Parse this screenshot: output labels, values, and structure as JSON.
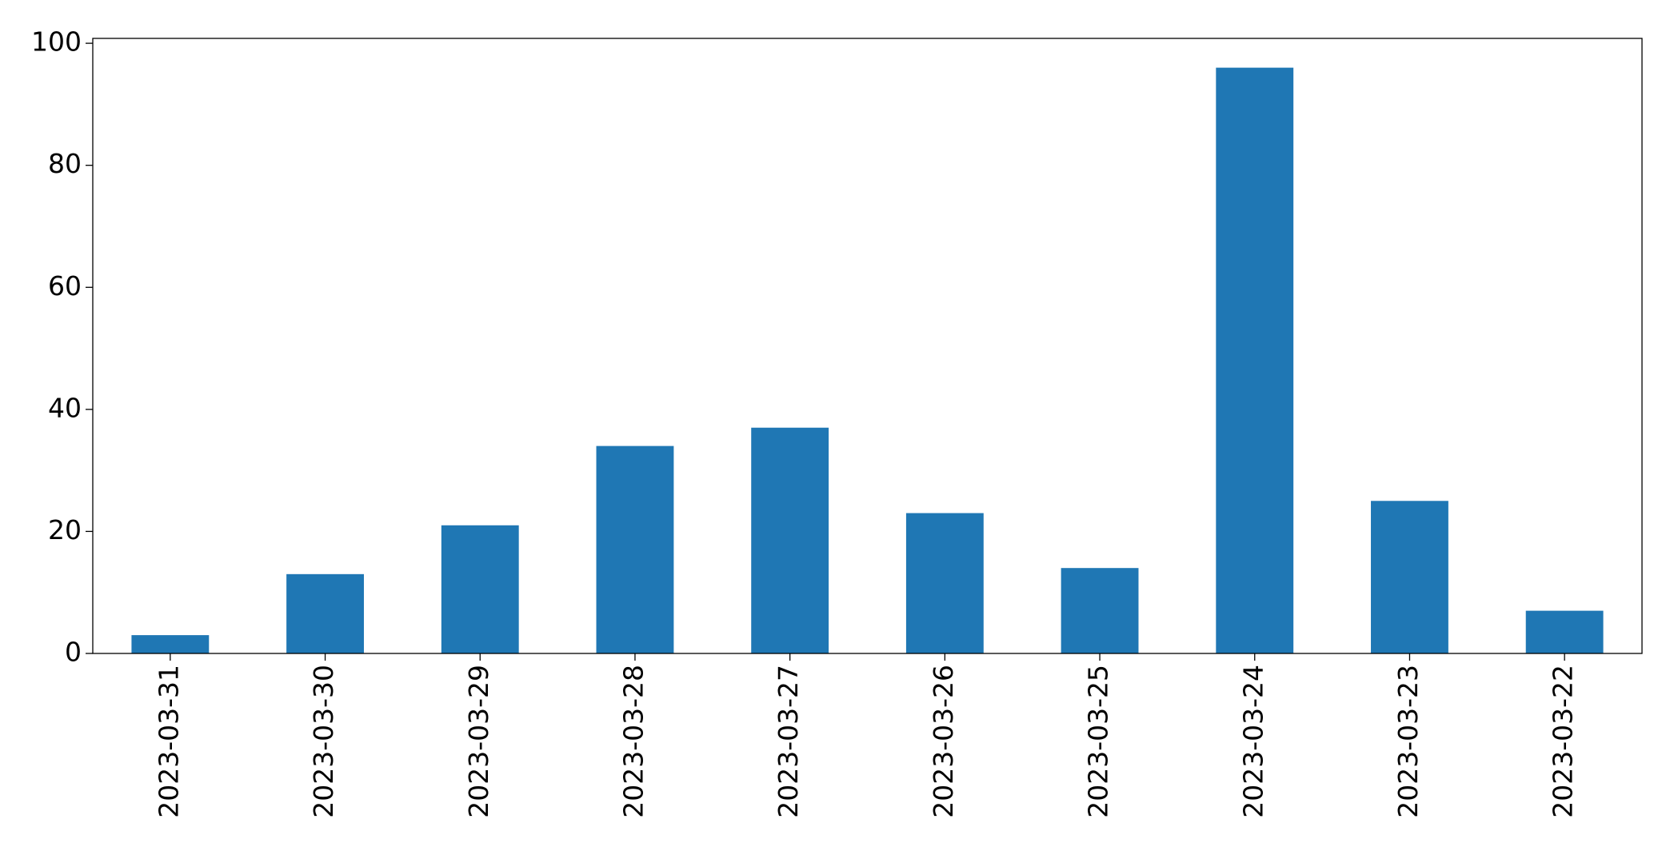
{
  "chart_data": {
    "type": "bar",
    "categories": [
      "2023-03-31",
      "2023-03-30",
      "2023-03-29",
      "2023-03-28",
      "2023-03-27",
      "2023-03-26",
      "2023-03-25",
      "2023-03-24",
      "2023-03-23",
      "2023-03-22"
    ],
    "values": [
      3,
      13,
      21,
      34,
      37,
      23,
      14,
      96,
      25,
      7
    ],
    "color": "#1f77b4",
    "ylim": [
      0,
      100.8
    ],
    "yticks": [
      0,
      20,
      40,
      60,
      80,
      100
    ],
    "grid": false
  }
}
